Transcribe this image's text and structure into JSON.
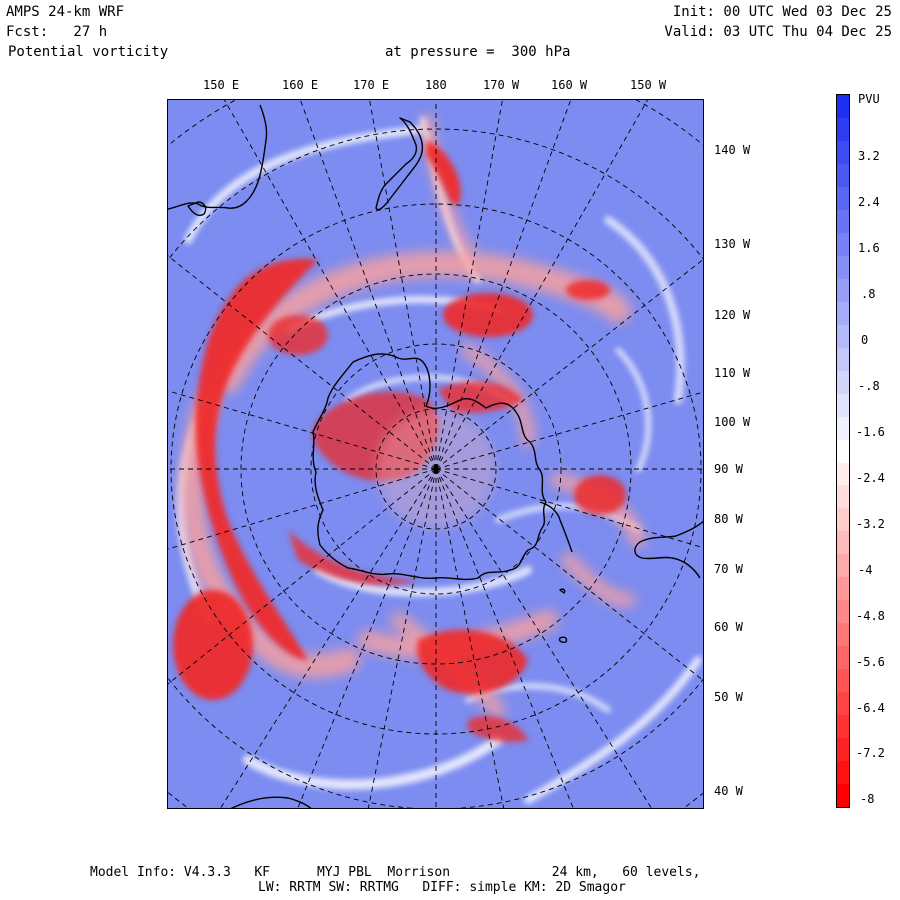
{
  "header": {
    "model": "AMPS 24-km WRF",
    "forecast": "Fcst:   27 h",
    "field": "Potential vorticity",
    "level": "at pressure =  300 hPa",
    "init": "Init: 00 UTC Wed 03 Dec 25",
    "valid": "Valid: 03 UTC Thu 04 Dec 25"
  },
  "top_lon_labels": [
    "150 E",
    "160 E",
    "170 E",
    "180",
    "170 W",
    "160 W",
    "150 W"
  ],
  "right_lon_labels": [
    "140 W",
    "130 W",
    "120 W",
    "110 W",
    "100 W",
    "90 W",
    "80 W",
    "70 W",
    "60 W",
    "50 W",
    "40 W"
  ],
  "colorbar": {
    "unit": "PVU",
    "labels": [
      "3.2",
      "2.4",
      "1.6",
      ".8",
      "0",
      "-.8",
      "-1.6",
      "-2.4",
      "-3.2",
      "-4",
      "-4.8",
      "-5.6",
      "-6.4",
      "-7.2",
      "-8"
    ],
    "color_top": "#1e2ff0",
    "color_mid": "#ffffff",
    "color_bottom": "#ff0000"
  },
  "map_colors": {
    "background": "#7c8cf0",
    "strong_red": "#ee2a2a",
    "light_red": "#f7a0a0",
    "white": "#ffffff",
    "coast": "#000000"
  },
  "footer": {
    "line1": "Model Info: V4.3.3   KF      MYJ PBL  Morrison             24 km,   60 levels,",
    "line2": "LW: RRTM SW: RRTMG   DIFF: simple KM: 2D Smagor"
  }
}
